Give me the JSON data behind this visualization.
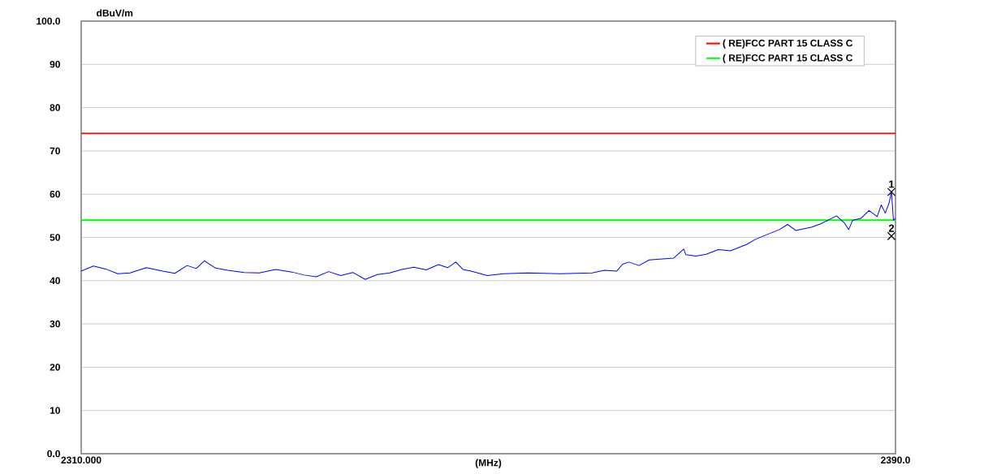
{
  "chart_data": {
    "type": "line",
    "xlabel": "(MHz)",
    "ylabel": "dBuV/m",
    "xlim": [
      2310,
      2390
    ],
    "ylim": [
      0,
      100
    ],
    "xticks": [
      {
        "value": 2310,
        "label": "2310.000"
      },
      {
        "value": 2390,
        "label": "2390.0"
      }
    ],
    "yticks": [
      {
        "value": 0,
        "label": "0.0"
      },
      10,
      20,
      30,
      40,
      50,
      60,
      70,
      80,
      90,
      {
        "value": 100,
        "label": "100.0"
      }
    ],
    "grid": "y",
    "legend": "top right",
    "series": [
      {
        "name": "( RE)FCC PART 15 CLASS C",
        "color": "#ff0000",
        "x": [
          2310,
          2390
        ],
        "values": [
          74,
          74
        ]
      },
      {
        "name": "( RE)FCC PART 15 CLASS C",
        "color": "#00ff00",
        "x": [
          2310,
          2390
        ],
        "values": [
          54,
          54
        ]
      },
      {
        "color": "#0000ff",
        "x": [
          2310.0,
          2311.2,
          2312.4,
          2313.6,
          2314.8,
          2316.4,
          2318.0,
          2319.2,
          2320.4,
          2321.3,
          2322.1,
          2323.2,
          2324.4,
          2326.0,
          2327.5,
          2329.1,
          2330.7,
          2331.9,
          2333.1,
          2334.3,
          2335.5,
          2336.7,
          2337.9,
          2339.1,
          2340.3,
          2341.5,
          2342.7,
          2343.9,
          2345.1,
          2346.0,
          2346.8,
          2347.5,
          2348.3,
          2349.9,
          2351.5,
          2353.9,
          2357.0,
          2360.2,
          2361.4,
          2362.6,
          2363.2,
          2363.8,
          2364.8,
          2365.8,
          2367.0,
          2368.2,
          2369.2,
          2369.4,
          2370.4,
          2371.4,
          2372.6,
          2373.8,
          2375.4,
          2376.2,
          2377.0,
          2378.6,
          2379.4,
          2380.2,
          2381.8,
          2382.6,
          2383.4,
          2384.2,
          2385.0,
          2385.4,
          2385.8,
          2386.6,
          2387.4,
          2388.2,
          2388.6,
          2389.0,
          2389.4,
          2389.6,
          2389.8,
          2390.0
        ],
        "values": [
          42.2,
          43.4,
          42.7,
          41.6,
          41.8,
          43.0,
          42.2,
          41.7,
          43.5,
          42.8,
          44.6,
          42.9,
          42.4,
          41.9,
          41.8,
          42.6,
          42.0,
          41.3,
          40.9,
          42.1,
          41.2,
          41.9,
          40.3,
          41.4,
          41.8,
          42.6,
          43.1,
          42.5,
          43.7,
          43.0,
          44.3,
          42.6,
          42.2,
          41.2,
          41.6,
          41.8,
          41.6,
          41.8,
          42.4,
          42.2,
          43.8,
          44.3,
          43.5,
          44.8,
          45.0,
          45.2,
          47.3,
          46.0,
          45.7,
          46.1,
          47.2,
          46.9,
          48.4,
          49.5,
          50.3,
          51.8,
          53.0,
          51.6,
          52.4,
          53.1,
          54.0,
          55.0,
          53.3,
          51.8,
          54.0,
          54.4,
          56.2,
          54.8,
          57.5,
          55.6,
          58.2,
          60.6,
          54.0,
          54.4
        ]
      }
    ],
    "annotations": [
      {
        "text": "1",
        "x": 2389.6,
        "y": 60.5
      },
      "2"
    ]
  }
}
